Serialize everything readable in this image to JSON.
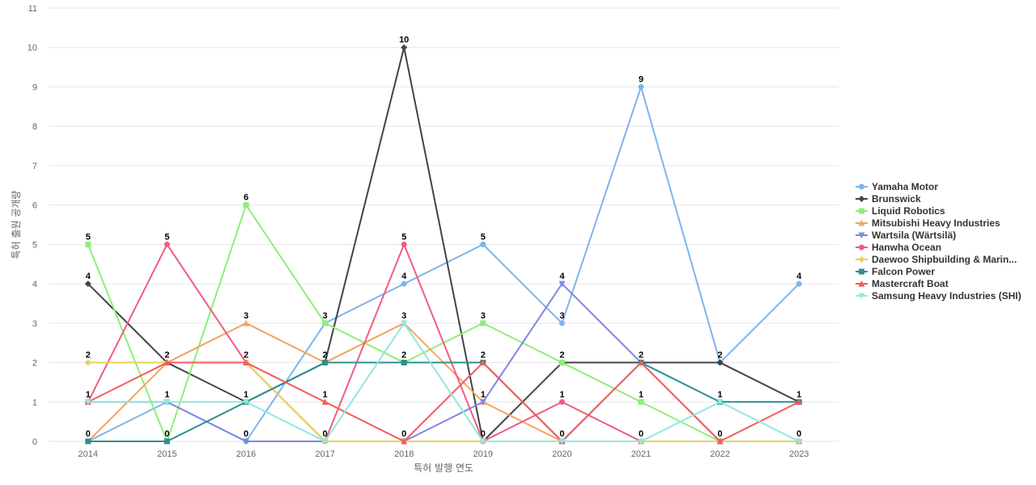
{
  "chart_data": {
    "type": "line",
    "title": "",
    "xlabel": "특허 발행 연도",
    "ylabel": "특허 출원 공개량",
    "ylim": [
      0,
      11
    ],
    "yticks": [
      0,
      1,
      2,
      3,
      4,
      5,
      6,
      7,
      8,
      9,
      10,
      11
    ],
    "grid": true,
    "legend_position": "right",
    "categories": [
      "2014",
      "2015",
      "2016",
      "2017",
      "2018",
      "2019",
      "2020",
      "2021",
      "2022",
      "2023"
    ],
    "series": [
      {
        "name": "Yamaha Motor",
        "color": "#7cb5ec",
        "marker": "circle",
        "values": [
          0,
          1,
          0,
          3,
          4,
          5,
          3,
          9,
          2,
          4
        ]
      },
      {
        "name": "Brunswick",
        "color": "#434348",
        "marker": "diamond",
        "values": [
          4,
          2,
          1,
          2,
          10,
          0,
          2,
          2,
          2,
          1
        ]
      },
      {
        "name": "Liquid Robotics",
        "color": "#90ed7d",
        "marker": "square",
        "values": [
          5,
          0,
          6,
          3,
          2,
          3,
          2,
          1,
          0,
          0
        ]
      },
      {
        "name": "Mitsubishi Heavy Industries",
        "color": "#f7a35c",
        "marker": "triangle",
        "values": [
          0,
          2,
          3,
          2,
          3,
          1,
          0,
          0,
          0,
          0
        ]
      },
      {
        "name": "Wartsila (Wärtsilä)",
        "color": "#8085e9",
        "marker": "triangle-down",
        "values": [
          1,
          1,
          0,
          0,
          0,
          1,
          4,
          2,
          0,
          0
        ]
      },
      {
        "name": "Hanwha Ocean",
        "color": "#f15c80",
        "marker": "circle",
        "values": [
          1,
          5,
          2,
          0,
          5,
          0,
          1,
          0,
          0,
          0
        ]
      },
      {
        "name": "Daewoo Shipbuilding & Marin...",
        "color": "#e4d354",
        "marker": "diamond",
        "values": [
          2,
          2,
          2,
          0,
          0,
          0,
          0,
          0,
          0,
          0
        ]
      },
      {
        "name": "Falcon Power",
        "color": "#2b908f",
        "marker": "square",
        "values": [
          0,
          0,
          1,
          2,
          2,
          2,
          0,
          2,
          1,
          1
        ]
      },
      {
        "name": "Mastercraft Boat",
        "color": "#f45b5b",
        "marker": "triangle",
        "values": [
          1,
          2,
          2,
          1,
          0,
          2,
          0,
          2,
          0,
          1
        ]
      },
      {
        "name": "Samsung Heavy Industries (SHI)",
        "color": "#91e8e1",
        "marker": "triangle-down",
        "values": [
          1,
          1,
          1,
          0,
          3,
          0,
          0,
          0,
          1,
          0
        ]
      }
    ],
    "point_labels": [
      {
        "x": "2014",
        "label": "5",
        "series": "Liquid Robotics"
      },
      {
        "x": "2014",
        "label": "4",
        "series": "Brunswick"
      },
      {
        "x": "2014",
        "label": "2",
        "series": "Daewoo Shipbuilding & Marin..."
      },
      {
        "x": "2014",
        "label": "1",
        "series": "Hanwha Ocean"
      },
      {
        "x": "2014",
        "label": "0",
        "series": "Yamaha Motor"
      },
      {
        "x": "2015",
        "label": "5",
        "series": "Hanwha Ocean"
      },
      {
        "x": "2015",
        "label": "2",
        "series": "Brunswick"
      },
      {
        "x": "2015",
        "label": "1",
        "series": "Yamaha Motor"
      },
      {
        "x": "2015",
        "label": "0",
        "series": "Liquid Robotics"
      },
      {
        "x": "2016",
        "label": "6",
        "series": "Liquid Robotics"
      },
      {
        "x": "2016",
        "label": "3",
        "series": "Mitsubishi Heavy Industries"
      },
      {
        "x": "2016",
        "label": "2",
        "series": "Hanwha Ocean"
      },
      {
        "x": "2016",
        "label": "1",
        "series": "Brunswick"
      },
      {
        "x": "2016",
        "label": "0",
        "series": "Yamaha Motor"
      },
      {
        "x": "2017",
        "label": "3",
        "series": "Liquid Robotics"
      },
      {
        "x": "2017",
        "label": "2",
        "series": "Brunswick"
      },
      {
        "x": "2017",
        "label": "1",
        "series": "Mastercraft Boat"
      },
      {
        "x": "2017",
        "label": "0",
        "series": "Hanwha Ocean"
      },
      {
        "x": "2018",
        "label": "10",
        "series": "Brunswick"
      },
      {
        "x": "2018",
        "label": "5",
        "series": "Hanwha Ocean"
      },
      {
        "x": "2018",
        "label": "4",
        "series": "Yamaha Motor"
      },
      {
        "x": "2018",
        "label": "3",
        "series": "Mitsubishi Heavy Industries"
      },
      {
        "x": "2018",
        "label": "2",
        "series": "Liquid Robotics"
      },
      {
        "x": "2018",
        "label": "0",
        "series": "Wartsila (Wärtsilä)"
      },
      {
        "x": "2019",
        "label": "5",
        "series": "Yamaha Motor"
      },
      {
        "x": "2019",
        "label": "3",
        "series": "Liquid Robotics"
      },
      {
        "x": "2019",
        "label": "2",
        "series": "Falcon Power"
      },
      {
        "x": "2019",
        "label": "1",
        "series": "Wartsila (Wärtsilä)"
      },
      {
        "x": "2019",
        "label": "0",
        "series": "Brunswick"
      },
      {
        "x": "2020",
        "label": "4",
        "series": "Wartsila (Wärtsilä)"
      },
      {
        "x": "2020",
        "label": "3",
        "series": "Yamaha Motor"
      },
      {
        "x": "2020",
        "label": "2",
        "series": "Brunswick"
      },
      {
        "x": "2020",
        "label": "1",
        "series": "Hanwha Ocean"
      },
      {
        "x": "2020",
        "label": "0",
        "series": "Mitsubishi Heavy Industries"
      },
      {
        "x": "2021",
        "label": "9",
        "series": "Yamaha Motor"
      },
      {
        "x": "2021",
        "label": "2",
        "series": "Brunswick"
      },
      {
        "x": "2021",
        "label": "1",
        "series": "Liquid Robotics"
      },
      {
        "x": "2021",
        "label": "0",
        "series": "Hanwha Ocean"
      },
      {
        "x": "2022",
        "label": "2",
        "series": "Yamaha Motor"
      },
      {
        "x": "2022",
        "label": "1",
        "series": "Falcon Power"
      },
      {
        "x": "2022",
        "label": "0",
        "series": "Liquid Robotics"
      },
      {
        "x": "2023",
        "label": "4",
        "series": "Yamaha Motor"
      },
      {
        "x": "2023",
        "label": "1",
        "series": "Brunswick"
      },
      {
        "x": "2023",
        "label": "0",
        "series": "Liquid Robotics"
      }
    ]
  }
}
